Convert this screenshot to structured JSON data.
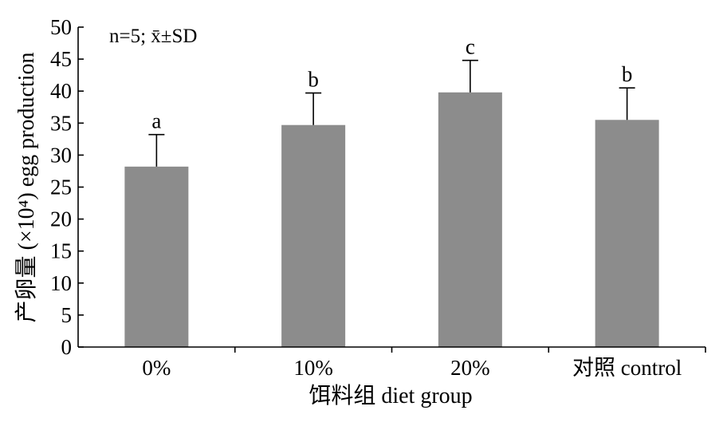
{
  "chart_data": {
    "type": "bar",
    "categories": [
      "0%",
      "10%",
      "20%",
      "对照 control"
    ],
    "values": [
      28.2,
      34.7,
      39.8,
      35.5
    ],
    "errors": [
      5.0,
      5.0,
      5.0,
      5.0
    ],
    "significance": [
      "a",
      "b",
      "c",
      "b"
    ],
    "ylabel": "产卵量 (×10⁴) egg production",
    "xlabel": "饵料组 diet group",
    "annotation": "n=5; x̄±SD",
    "ylim": [
      0,
      50
    ],
    "yticks": [
      "0",
      "5",
      "10",
      "15",
      "20",
      "25",
      "30",
      "35",
      "40",
      "45",
      "50"
    ],
    "bar_color": "#8c8c8c",
    "grid": false,
    "legend": false
  }
}
